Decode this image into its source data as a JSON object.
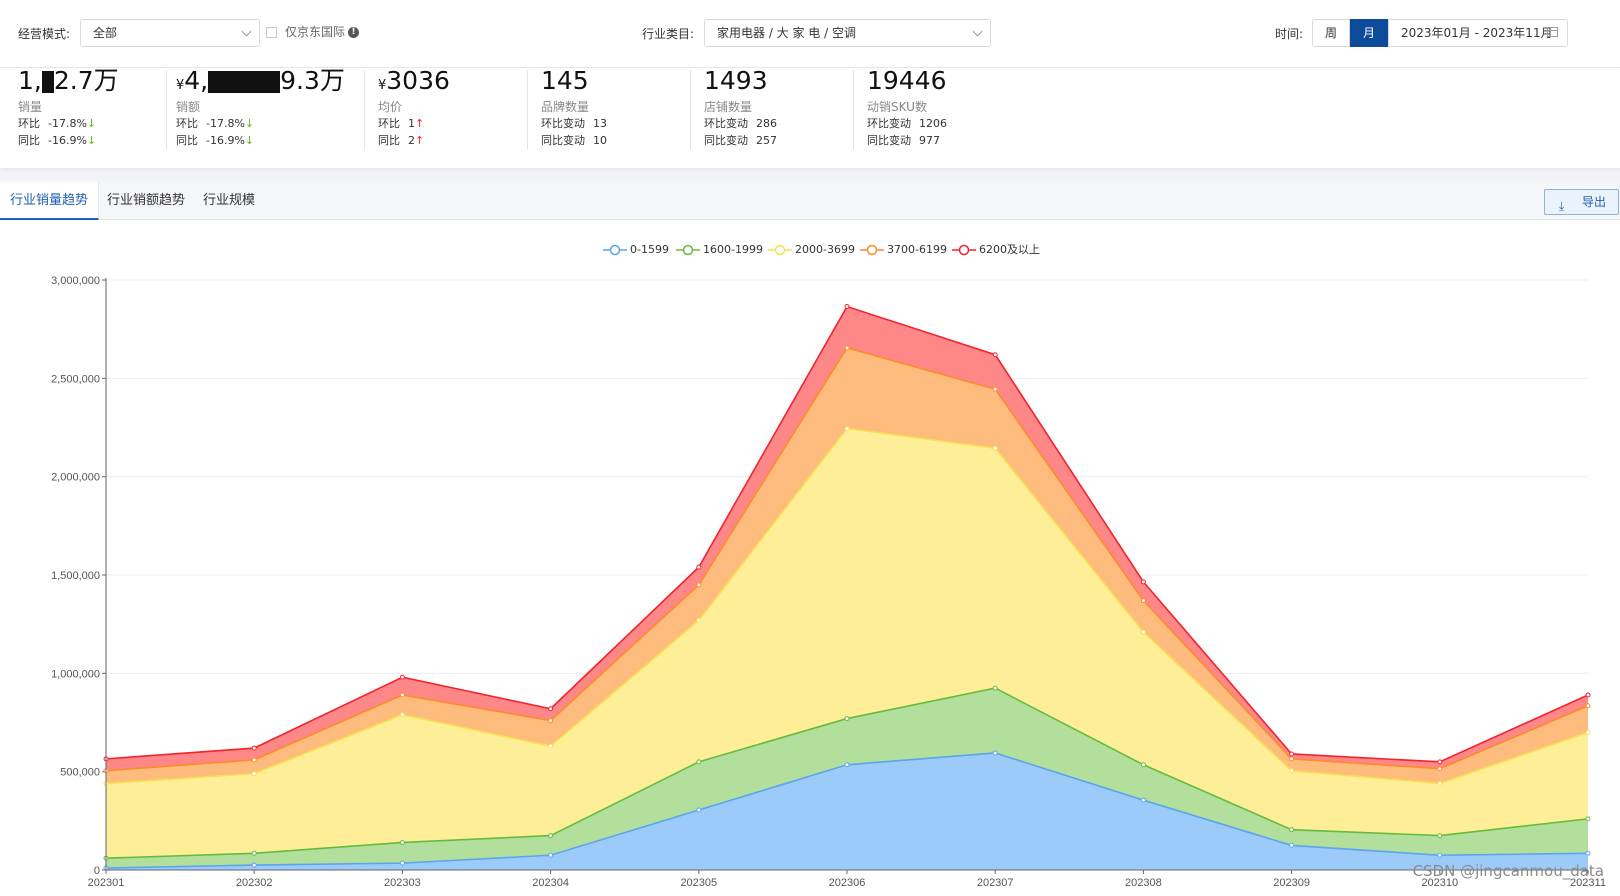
{
  "filters": {
    "mode_label": "经营模式:",
    "mode_value": "全部",
    "jd_intl_label": "仅京东国际",
    "category_label": "行业类目:",
    "category_value": "家用电器 / 大 家 电 / 空调",
    "time_label": "时间:",
    "granularity": [
      "周",
      "月"
    ],
    "granularity_selected": "月",
    "date_range": "2023年01月 - 2023年11月"
  },
  "kpis": [
    {
      "value_prefix": "1,",
      "value_suffix": "2.7万",
      "name": "销量",
      "r1_label": "环比",
      "r1_value": "-17.8%",
      "r1_dir": "↓",
      "r2_label": "同比",
      "r2_value": "-16.9%",
      "r2_dir": "↓"
    },
    {
      "currency": "¥",
      "value_prefix": "4,",
      "value_suffix": "9.3万",
      "name": "销额",
      "r1_label": "环比",
      "r1_value": "-17.8%",
      "r1_dir": "↓",
      "r2_label": "同比",
      "r2_value": "-16.9%",
      "r2_dir": "↓"
    },
    {
      "currency": "¥",
      "value": "3036",
      "name": "均价",
      "r1_label": "环比",
      "r1_value": "1",
      "r1_dir": "↑",
      "r2_label": "同比",
      "r2_value": "2",
      "r2_dir": "↑"
    },
    {
      "value": "145",
      "name": "品牌数量",
      "r1_label": "环比变动",
      "r1_value": "13",
      "r2_label": "同比变动",
      "r2_value": "10"
    },
    {
      "value": "1493",
      "name": "店铺数量",
      "r1_label": "环比变动",
      "r1_value": "286",
      "r2_label": "同比变动",
      "r2_value": "257"
    },
    {
      "value": "19446",
      "name": "动销SKU数",
      "r1_label": "环比变动",
      "r1_value": "1206",
      "r2_label": "同比变动",
      "r2_value": "977"
    }
  ],
  "tabs": [
    "行业销量趋势",
    "行业销额趋势",
    "行业规模"
  ],
  "active_tab": "行业销量趋势",
  "export_label": "导出",
  "watermark": "CSDN @jingcanmou_data",
  "chart_data": {
    "type": "area",
    "stacked": true,
    "categories": [
      "202301",
      "202302",
      "202303",
      "202304",
      "202305",
      "202306",
      "202307",
      "202308",
      "202309",
      "202310",
      "202311"
    ],
    "y_ticks": [
      "0",
      "500,000",
      "1,000,000",
      "1,500,000",
      "2,000,000",
      "2,500,000",
      "3,000,000"
    ],
    "ylim": [
      0,
      3000000
    ],
    "grid": true,
    "legend_position": "top-center",
    "series": [
      {
        "name": "0-1599",
        "color": "#5aa4f0",
        "fill": "#9ccbfa",
        "values": [
          10000,
          25000,
          35000,
          75000,
          305000,
          535000,
          595000,
          355000,
          125000,
          75000,
          85000
        ]
      },
      {
        "name": "1600-1999",
        "color": "#66bb3f",
        "fill": "#b2df9b",
        "values": [
          50000,
          60000,
          105000,
          100000,
          245000,
          235000,
          330000,
          180000,
          80000,
          100000,
          175000
        ]
      },
      {
        "name": "2000-3699",
        "color": "#f8df50",
        "fill": "#feee97",
        "values": [
          380000,
          405000,
          650000,
          455000,
          720000,
          1475000,
          1220000,
          675000,
          300000,
          265000,
          440000
        ]
      },
      {
        "name": "3700-6199",
        "color": "#fb8c2a",
        "fill": "#febb7e",
        "values": [
          65000,
          70000,
          100000,
          130000,
          180000,
          410000,
          300000,
          160000,
          60000,
          75000,
          135000
        ]
      },
      {
        "name": "6200及以上",
        "color": "#f5222d",
        "fill": "#fe8788",
        "values": [
          60000,
          60000,
          90000,
          60000,
          90000,
          210000,
          175000,
          95000,
          25000,
          35000,
          55000
        ]
      }
    ]
  }
}
